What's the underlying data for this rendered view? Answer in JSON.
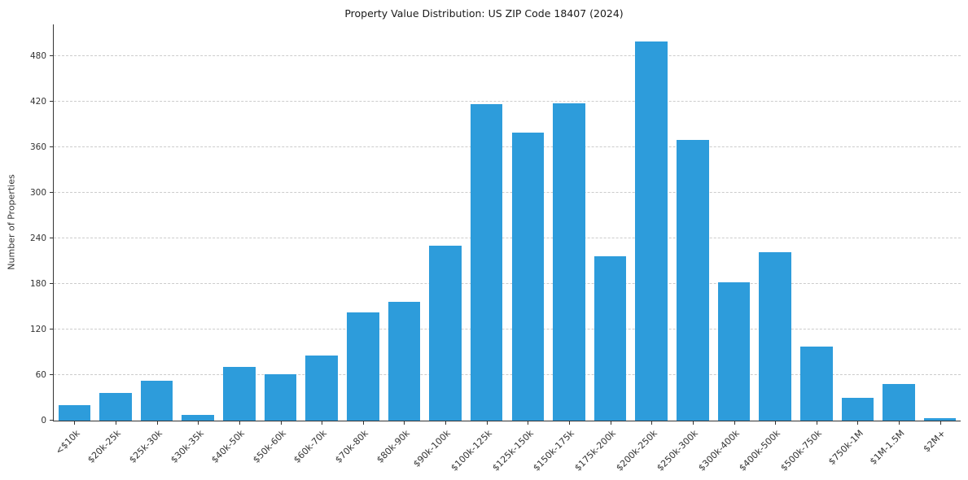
{
  "chart_data": {
    "type": "bar",
    "title": "Property Value Distribution: US ZIP Code 18407 (2024)",
    "xlabel": "",
    "ylabel": "Number of Properties",
    "categories": [
      "<$10k",
      "$20k-25k",
      "$25k-30k",
      "$30k-35k",
      "$40k-50k",
      "$50k-60k",
      "$60k-70k",
      "$70k-80k",
      "$80k-90k",
      "$90k-100k",
      "$100k-125k",
      "$125k-150k",
      "$150k-175k",
      "$175k-200k",
      "$200k-250k",
      "$250k-300k",
      "$300k-400k",
      "$400k-500k",
      "$500k-750k",
      "$750k-1M",
      "$1M-1.5M",
      "$2M+"
    ],
    "values": [
      20,
      36,
      53,
      7,
      71,
      61,
      86,
      143,
      157,
      230,
      417,
      379,
      418,
      217,
      500,
      370,
      182,
      222,
      98,
      30,
      48,
      3
    ],
    "ylim": [
      0,
      522
    ],
    "yticks": [
      0,
      60,
      120,
      180,
      240,
      300,
      360,
      420,
      480
    ],
    "grid": "horizontal-dashed",
    "legend": "none",
    "bar_color": "#2D9CDB",
    "axis_color": "#333333",
    "gridline_color": "#cccccc"
  }
}
